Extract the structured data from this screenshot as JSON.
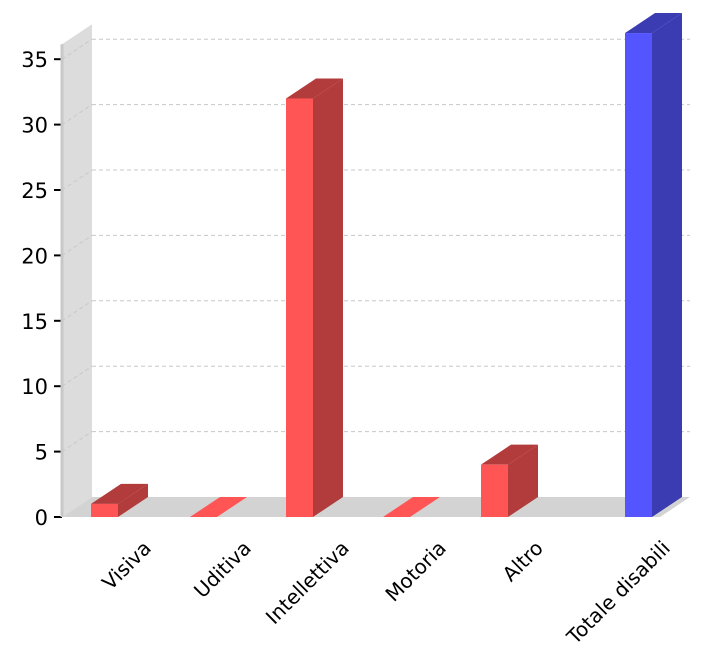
{
  "chart_data": {
    "type": "bar",
    "title": "",
    "xlabel": "",
    "ylabel": "",
    "categories": [
      "Visiva",
      "Uditiva",
      "Intellettiva",
      "Motoria",
      "Altro",
      "Totale disabili"
    ],
    "values": [
      1,
      0,
      32,
      0,
      4,
      37
    ],
    "ylim": [
      0,
      35
    ],
    "yticks": [
      "0",
      "5",
      "10",
      "15",
      "20",
      "25",
      "30",
      "35"
    ],
    "grid": true,
    "legend": "none",
    "colors": {
      "front": [
        "#ff5555",
        "#ff5555",
        "#ff5555",
        "#ff5555",
        "#ff5555",
        "#5555ff"
      ],
      "side": [
        "#b23b3b",
        "#b23b3b",
        "#b23b3b",
        "#b23b3b",
        "#b23b3b",
        "#3b3bb2"
      ],
      "wall": "#dcdcdc",
      "floor": "#d3d3d3",
      "grid": "#c8c8c8",
      "axis": "#c8c8c8"
    }
  }
}
